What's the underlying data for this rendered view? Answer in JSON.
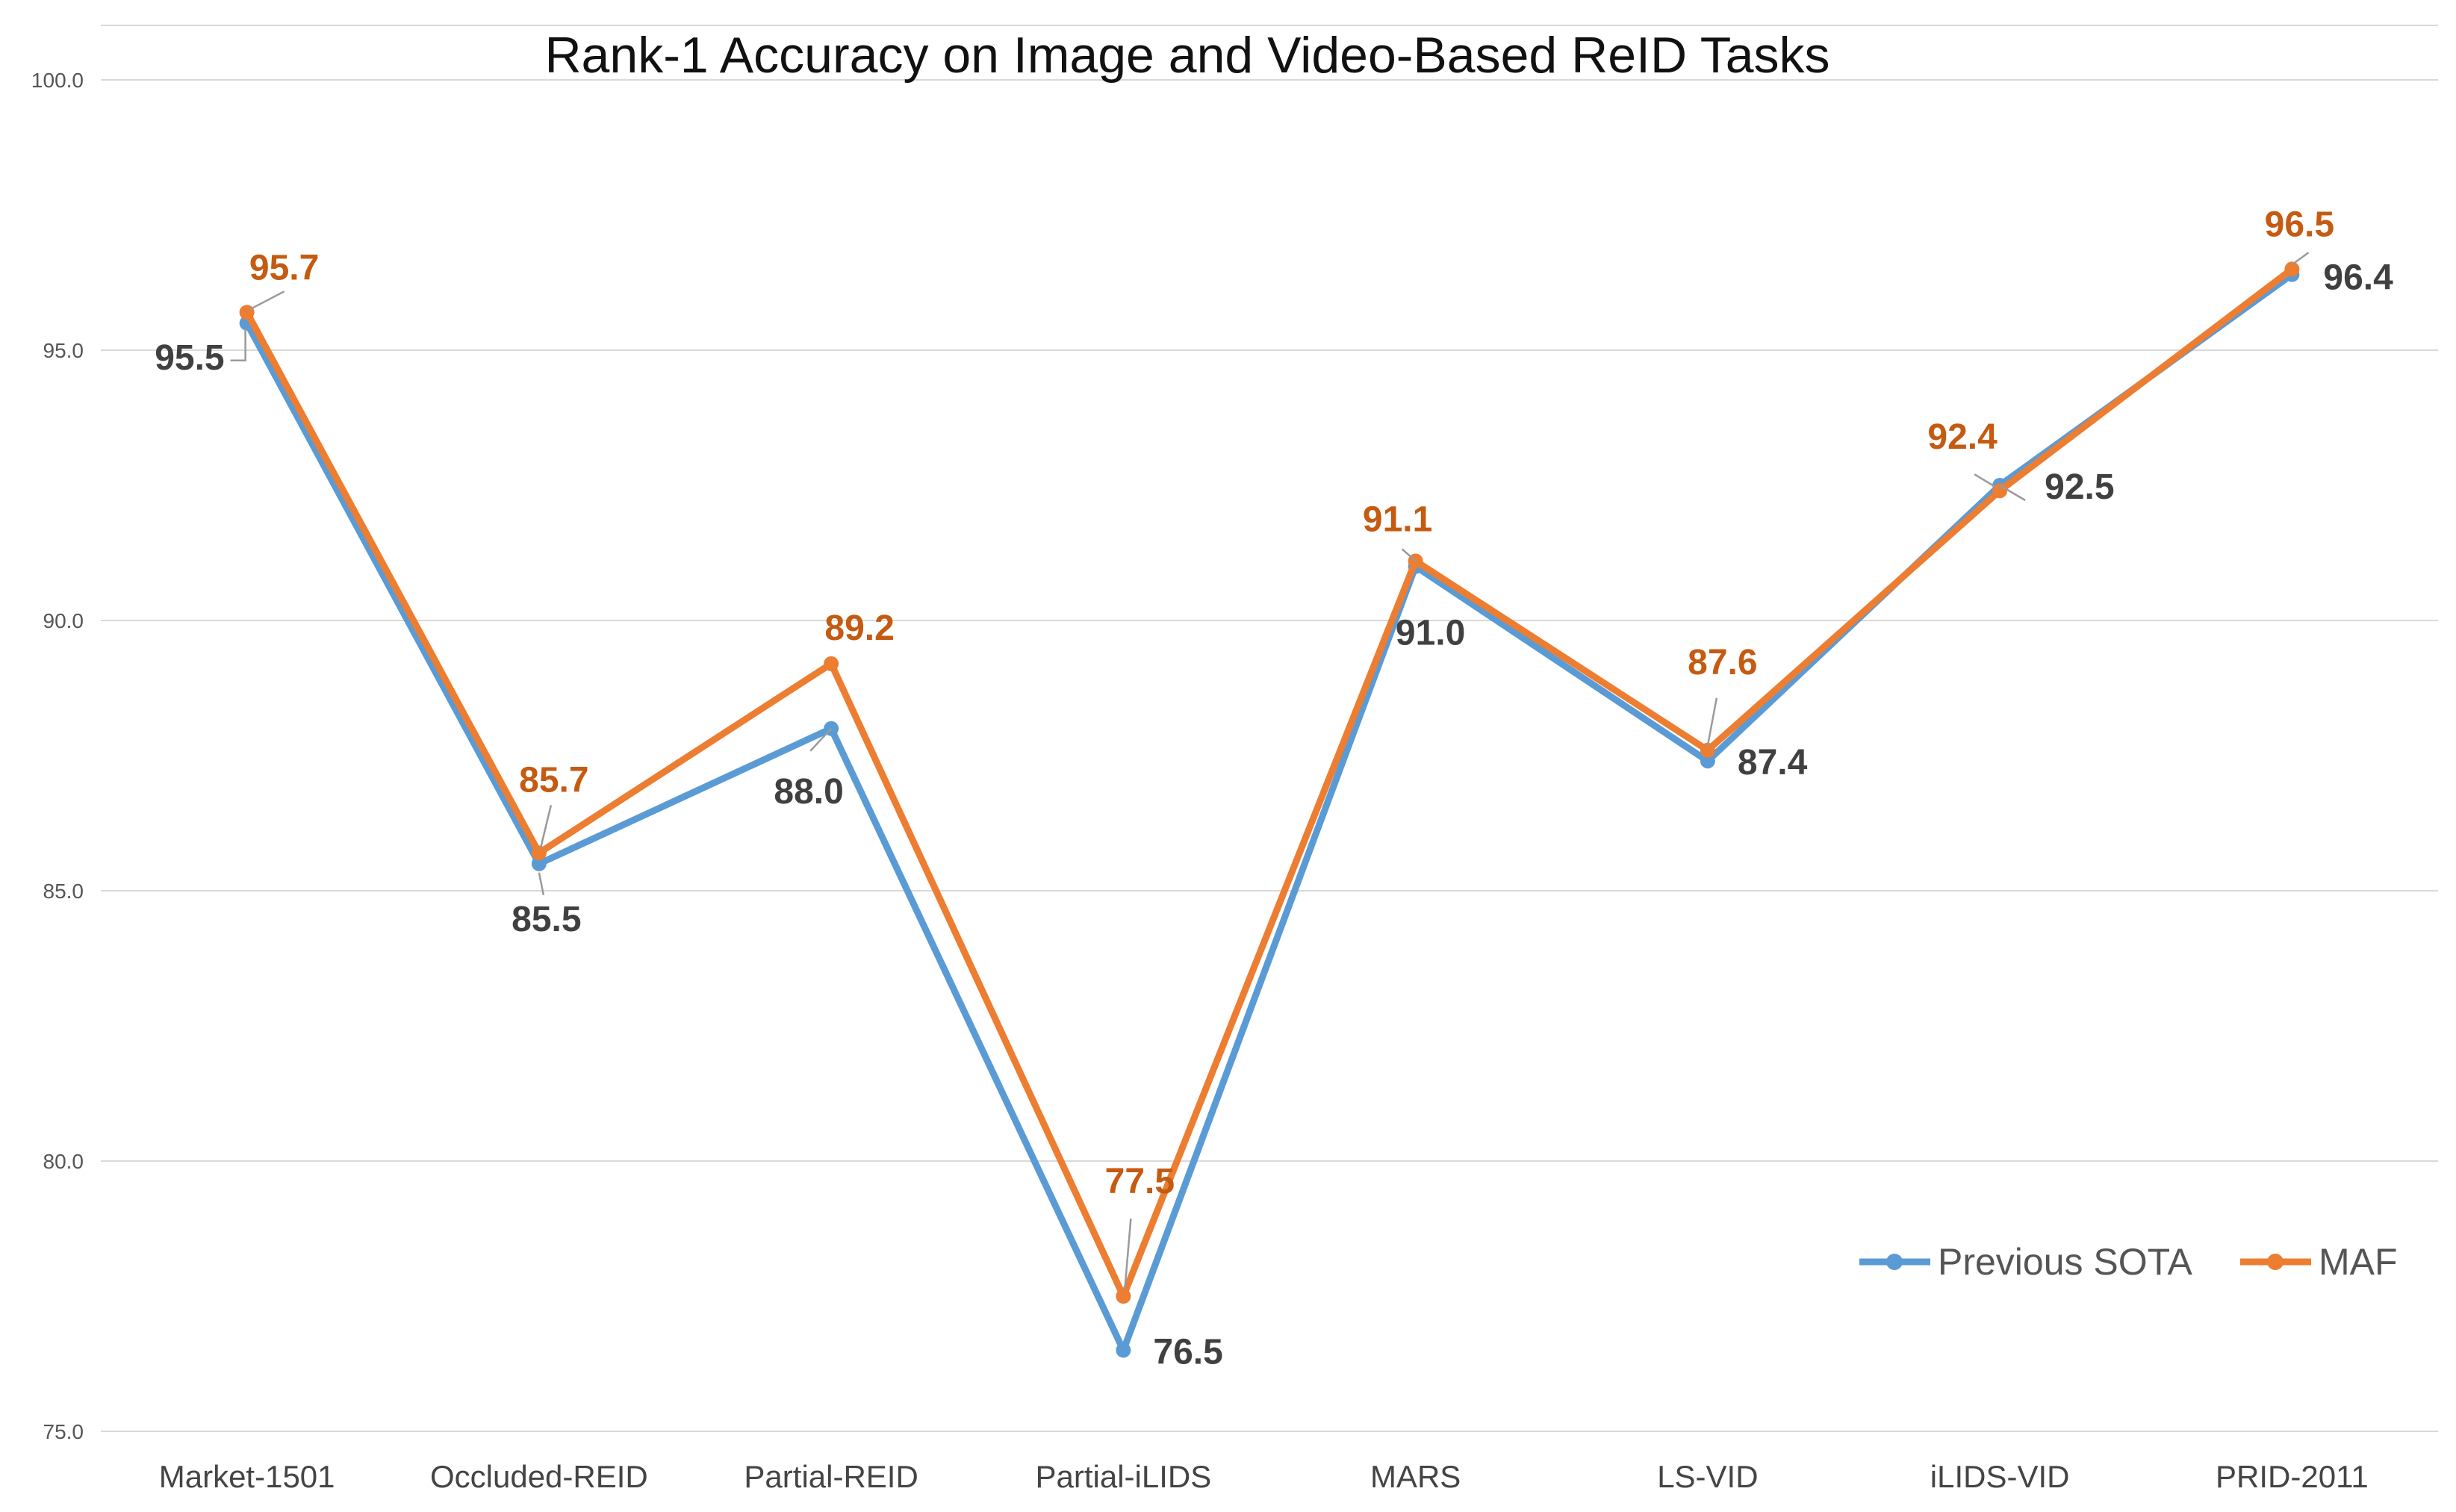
{
  "chart_data": {
    "type": "line",
    "title": "Rank-1 Accuracy on Image and Video-Based ReID Tasks",
    "xlabel": "",
    "ylabel": "",
    "categories": [
      "Market-1501",
      "Occluded-REID",
      "Partial-REID",
      "Partial-iLIDS",
      "MARS",
      "LS-VID",
      "iLIDS-VID",
      "PRID-2011"
    ],
    "ylim": [
      75.0,
      100.0
    ],
    "yticks": [
      "75.0",
      "80.0",
      "85.0",
      "90.0",
      "95.0",
      "100.0"
    ],
    "grid": true,
    "legend_position": "bottom-right",
    "series": [
      {
        "name": "Previous SOTA",
        "color": "#5b9bd5",
        "label_color": "#404040",
        "values": [
          95.5,
          85.5,
          88.0,
          76.5,
          91.0,
          87.4,
          92.5,
          96.4
        ],
        "labels": [
          "95.5",
          "85.5",
          "88.0",
          "76.5",
          "91.0",
          "87.4",
          "92.5",
          "96.4"
        ]
      },
      {
        "name": "MAF",
        "color": "#ed7d31",
        "label_color": "#c55a11",
        "values": [
          95.7,
          85.7,
          89.2,
          77.5,
          91.1,
          87.6,
          92.4,
          96.5
        ],
        "labels": [
          "95.7",
          "85.7",
          "89.2",
          "77.5",
          "91.1",
          "87.6",
          "92.4",
          "96.5"
        ]
      }
    ]
  }
}
